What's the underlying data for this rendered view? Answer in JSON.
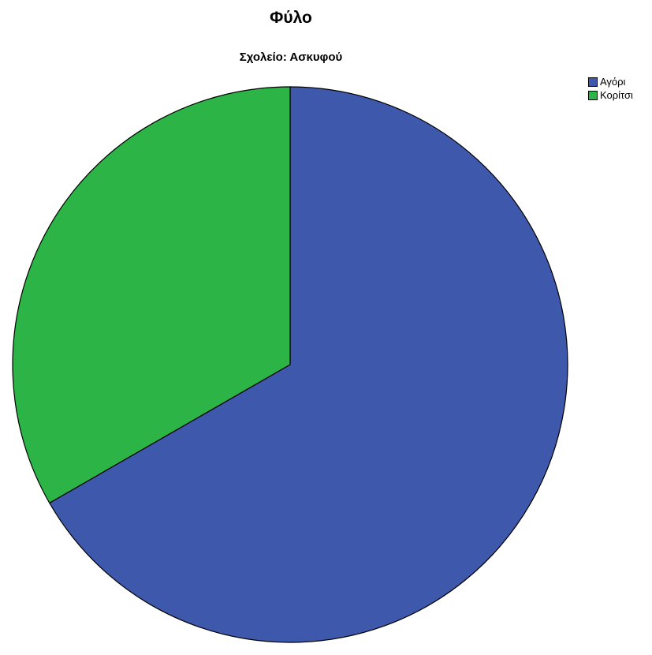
{
  "chart_data": {
    "type": "pie",
    "title": "Φύλο",
    "subtitle": "Σχολείο: Ασκυφού",
    "slices": [
      {
        "label": "Αγόρι",
        "value": 66.7,
        "color": "#3e58ac"
      },
      {
        "label": "Κορίτσι",
        "value": 33.3,
        "color": "#2db446"
      }
    ],
    "legend_placement": "top-right"
  }
}
